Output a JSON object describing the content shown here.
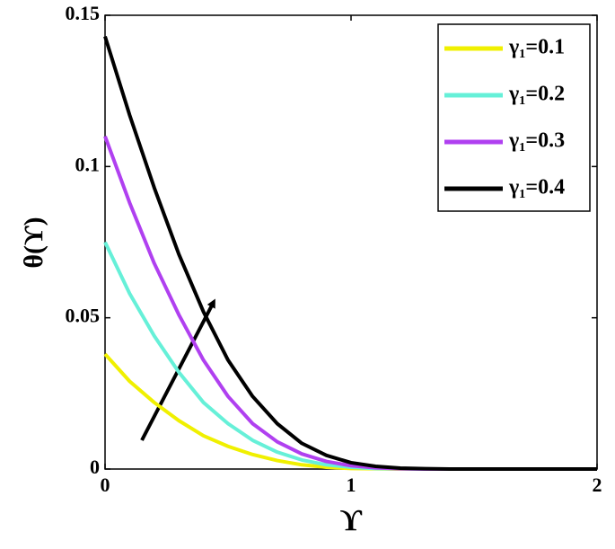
{
  "chart_data": {
    "type": "line",
    "x_label": "ϒ",
    "y_label": "θ(ϒ)",
    "x": [
      0,
      0.1,
      0.2,
      0.3,
      0.4,
      0.5,
      0.6,
      0.7,
      0.8,
      0.9,
      1.0,
      1.1,
      1.2,
      1.3,
      1.4,
      2
    ],
    "series": [
      {
        "name": "γ₁=0.1",
        "color": "#f0f000",
        "values": [
          0.038,
          0.029,
          0.022,
          0.016,
          0.011,
          0.0075,
          0.0048,
          0.0028,
          0.0014,
          0.0006,
          0.0002,
          0.0001,
          0,
          0,
          0,
          0
        ]
      },
      {
        "name": "γ₁=0.2",
        "color": "#66f0d8",
        "values": [
          0.075,
          0.058,
          0.044,
          0.032,
          0.022,
          0.015,
          0.0095,
          0.0056,
          0.003,
          0.0014,
          0.0006,
          0.0002,
          0.0001,
          0,
          0,
          0
        ]
      },
      {
        "name": "γ₁=0.3",
        "color": "#b040f0",
        "values": [
          0.11,
          0.088,
          0.068,
          0.051,
          0.036,
          0.024,
          0.015,
          0.009,
          0.005,
          0.0025,
          0.0011,
          0.0004,
          0.0001,
          0,
          0,
          0
        ]
      },
      {
        "name": "γ₁=0.4",
        "color": "#000000",
        "values": [
          0.143,
          0.117,
          0.093,
          0.071,
          0.052,
          0.036,
          0.024,
          0.015,
          0.0085,
          0.0045,
          0.0021,
          0.0009,
          0.0003,
          0.0001,
          0,
          0
        ]
      }
    ],
    "xlim": [
      0,
      2
    ],
    "ylim": [
      0,
      0.15
    ],
    "xticks": [
      0,
      1,
      2
    ],
    "yticks": [
      0,
      0.05,
      0.1,
      0.15
    ],
    "legend": "upper right",
    "grid": false
  }
}
